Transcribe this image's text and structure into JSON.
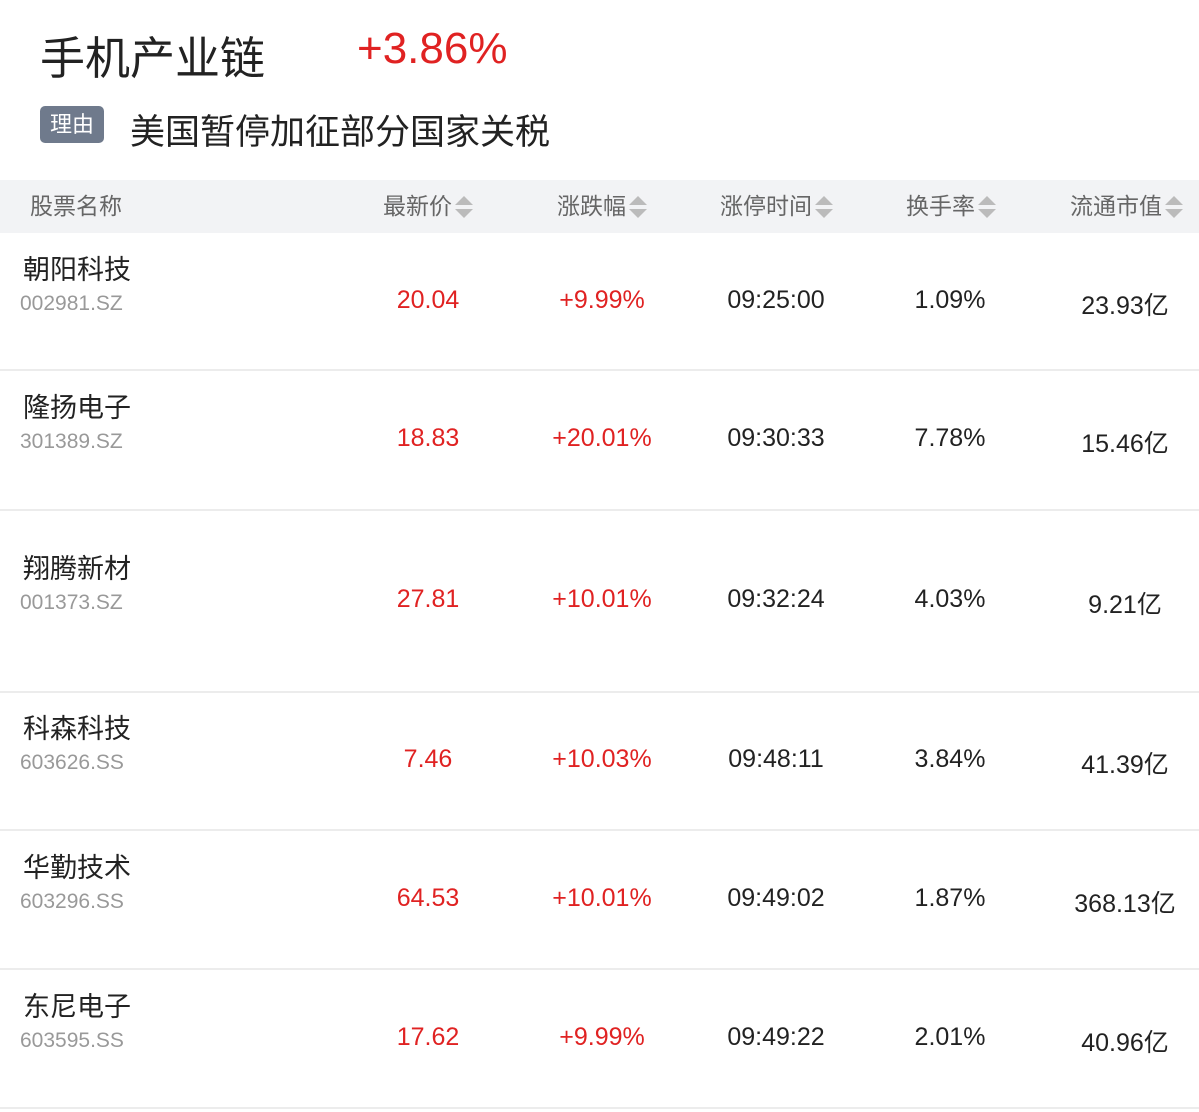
{
  "header": {
    "title": "手机产业链",
    "change": "+3.86%"
  },
  "reason": {
    "tag": "理由",
    "text": "美国暂停加征部分国家关税"
  },
  "table": {
    "columns": [
      "股票名称",
      "最新价",
      "涨跌幅",
      "涨停时间",
      "换手率",
      "流通市值"
    ],
    "rows": [
      [
        "朝阳科技",
        "002981.SZ",
        "20.04",
        "+9.99%",
        "09:25:00",
        "1.09%",
        "23.93亿"
      ],
      [
        "隆扬电子",
        "301389.SZ",
        "18.83",
        "+20.01%",
        "09:30:33",
        "7.78%",
        "15.46亿"
      ],
      [
        "翔腾新材",
        "001373.SZ",
        "27.81",
        "+10.01%",
        "09:32:24",
        "4.03%",
        "9.21亿"
      ],
      [
        "科森科技",
        "603626.SS",
        "7.46",
        "+10.03%",
        "09:48:11",
        "3.84%",
        "41.39亿"
      ],
      [
        "华勤技术",
        "603296.SS",
        "64.53",
        "+10.01%",
        "09:49:02",
        "1.87%",
        "368.13亿"
      ],
      [
        "东尼电子",
        "603595.SS",
        "17.62",
        "+9.99%",
        "09:49:22",
        "2.01%",
        "40.96亿"
      ]
    ]
  }
}
